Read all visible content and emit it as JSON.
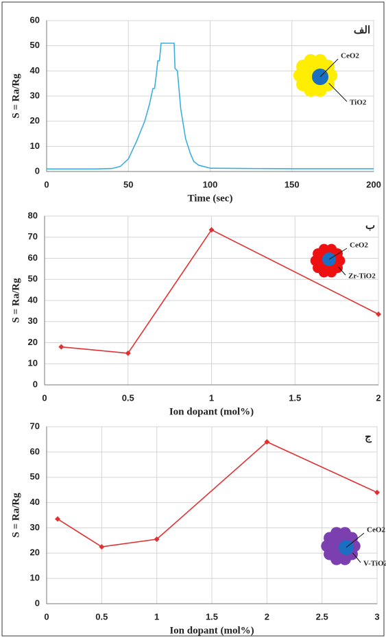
{
  "chart_data": [
    {
      "type": "line",
      "color": "#3aaee0",
      "marker": "none",
      "grid": true,
      "xlabel": "Time (sec)",
      "ylabel": "S = Ra/Rg",
      "annotation": "الف",
      "inset_labels": [
        "CeO2",
        "TiO2"
      ],
      "xlim": [
        0,
        200
      ],
      "xticks": [
        0,
        50,
        100,
        150,
        200
      ],
      "ylim": [
        0,
        60
      ],
      "yticks": [
        0,
        10,
        20,
        30,
        40,
        50,
        60
      ],
      "x": [
        0,
        10,
        20,
        30,
        40,
        45,
        50,
        55,
        60,
        63,
        65,
        66,
        67,
        68,
        69,
        70,
        75,
        78,
        78.5,
        80,
        82,
        85,
        88,
        90,
        93,
        96,
        99,
        100,
        120,
        150,
        200
      ],
      "values": [
        1,
        1,
        1,
        1,
        1.2,
        2,
        5,
        12,
        20,
        27,
        33,
        33,
        38,
        44,
        44,
        51,
        51,
        51,
        41,
        40,
        25,
        13,
        7,
        4,
        2.5,
        2,
        1.5,
        1.3,
        1.2,
        1.1,
        1.1
      ]
    },
    {
      "type": "line",
      "color": "#e03030",
      "marker": "diamond",
      "grid": true,
      "xlabel": "Ion dopant (mol%)",
      "ylabel": "S = Ra/Rg",
      "annotation": "ب",
      "inset_labels": [
        "CeO2",
        "Zr-TiO2"
      ],
      "xlim": [
        0,
        2
      ],
      "xticks": [
        0,
        0.5,
        1,
        1.5,
        2
      ],
      "ylim": [
        0,
        80
      ],
      "yticks": [
        0,
        10,
        20,
        30,
        40,
        50,
        60,
        70,
        80
      ],
      "x": [
        0.1,
        0.5,
        1,
        2
      ],
      "values": [
        18,
        15,
        73.5,
        33.5
      ]
    },
    {
      "type": "line",
      "color": "#e03030",
      "marker": "diamond",
      "grid": true,
      "xlabel": "Ion dopant (mol%)",
      "ylabel": "S = Ra/Rg",
      "annotation": "ج",
      "inset_labels": [
        "CeO2",
        "V-TiO2"
      ],
      "xlim": [
        0,
        3
      ],
      "xticks": [
        0,
        0.5,
        1,
        1.5,
        2,
        2.5,
        3
      ],
      "ylim": [
        0,
        70
      ],
      "yticks": [
        0,
        10,
        20,
        30,
        40,
        50,
        60,
        70
      ],
      "x": [
        0.1,
        0.5,
        1,
        2,
        3
      ],
      "values": [
        33.5,
        22.5,
        25.5,
        64,
        44
      ]
    }
  ]
}
